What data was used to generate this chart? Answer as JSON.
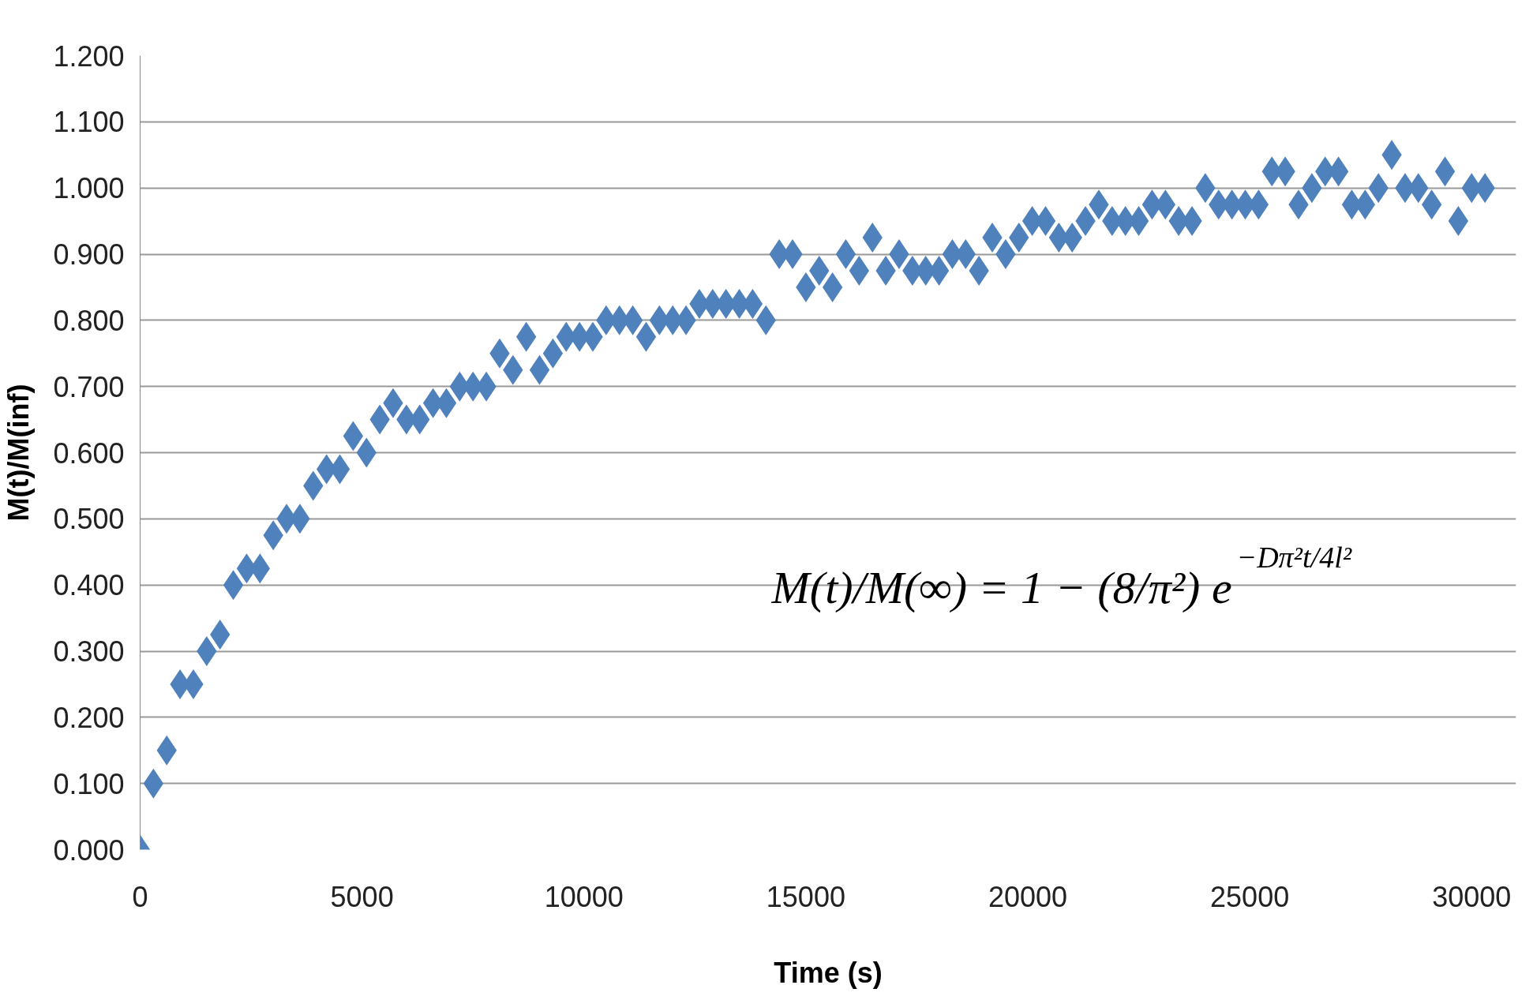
{
  "chart_data": {
    "type": "scatter",
    "xlabel": "Time (s)",
    "ylabel": "M(t)/M(inf)",
    "annotations": [
      "M(t)/M(∞) = 1 − (8/π²) e$^{−Dπ²t/4l²}$"
    ],
    "x": [
      0,
      300,
      600,
      900,
      1200,
      1500,
      1800,
      2100,
      2400,
      2700,
      3000,
      3300,
      3600,
      3900,
      4200,
      4500,
      4800,
      5100,
      5400,
      5700,
      6000,
      6300,
      6600,
      6900,
      7200,
      7500,
      7800,
      8100,
      8400,
      8700,
      9000,
      9300,
      9600,
      9900,
      10200,
      10500,
      10800,
      11100,
      11400,
      11700,
      12000,
      12300,
      12600,
      12900,
      13200,
      13500,
      13800,
      14100,
      14400,
      14700,
      15000,
      15300,
      15600,
      15900,
      16200,
      16500,
      16800,
      17100,
      17400,
      17700,
      18000,
      18300,
      18600,
      18900,
      19200,
      19500,
      19800,
      20100,
      20400,
      20700,
      21000,
      21300,
      21600,
      21900,
      22200,
      22500,
      22800,
      23100,
      23400,
      23700,
      24000,
      24300,
      24600,
      24900,
      25200,
      25500,
      25800,
      26100,
      26400,
      26700,
      27000,
      27300,
      27600,
      27900,
      28200,
      28500,
      28800,
      29100,
      29400,
      29700,
      30000,
      30300
    ],
    "series": [
      {
        "color": "#4f81bd",
        "values": [
          0.0,
          0.1,
          0.15,
          0.25,
          0.25,
          0.3,
          0.325,
          0.4,
          0.425,
          0.425,
          0.475,
          0.5,
          0.5,
          0.55,
          0.575,
          0.575,
          0.625,
          0.6,
          0.65,
          0.675,
          0.65,
          0.65,
          0.675,
          0.675,
          0.7,
          0.7,
          0.7,
          0.75,
          0.725,
          0.775,
          0.725,
          0.75,
          0.775,
          0.775,
          0.775,
          0.8,
          0.8,
          0.8,
          0.775,
          0.8,
          0.8,
          0.8,
          0.825,
          0.825,
          0.825,
          0.825,
          0.825,
          0.8,
          0.9,
          0.9,
          0.85,
          0.875,
          0.85,
          0.9,
          0.875,
          0.925,
          0.875,
          0.9,
          0.875,
          0.875,
          0.875,
          0.9,
          0.9,
          0.875,
          0.925,
          0.9,
          0.925,
          0.95,
          0.95,
          0.925,
          0.925,
          0.95,
          0.975,
          0.95,
          0.95,
          0.95,
          0.975,
          0.975,
          0.95,
          0.95,
          1.0,
          0.975,
          0.975,
          0.975,
          0.975,
          1.025,
          1.025,
          0.975,
          1.0,
          1.025,
          1.025,
          0.975,
          0.975,
          1.0,
          1.05,
          1.0,
          1.0,
          0.975,
          1.025,
          0.95,
          1.0,
          1.0
        ]
      }
    ],
    "xlim": [
      0,
      31000
    ],
    "xticks": [
      0,
      5000,
      10000,
      15000,
      20000,
      25000,
      30000
    ],
    "ylim": [
      0,
      1.2
    ],
    "yticks": [
      {
        "value": 0,
        "label": "0.000"
      },
      {
        "value": 0.1,
        "label": "0.100"
      },
      {
        "value": 0.2,
        "label": "0.200"
      },
      {
        "value": 0.3,
        "label": "0.300"
      },
      {
        "value": 0.4,
        "label": "0.400"
      },
      {
        "value": 0.5,
        "label": "0.500"
      },
      {
        "value": 0.6,
        "label": "0.600"
      },
      {
        "value": 0.7,
        "label": "0.700"
      },
      {
        "value": 0.8,
        "label": "0.800"
      },
      {
        "value": 0.9,
        "label": "0.900"
      },
      {
        "value": 1.0,
        "label": "1.000"
      },
      {
        "value": 1.1,
        "label": "1.100"
      },
      {
        "value": 1.2,
        "label": "1.200"
      }
    ],
    "grid": "y",
    "marker": "diamond"
  }
}
